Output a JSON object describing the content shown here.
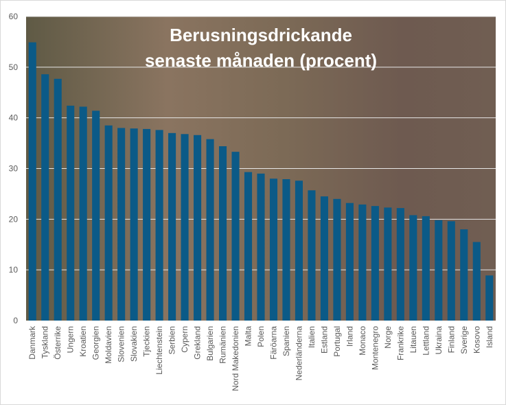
{
  "chart_data": {
    "type": "bar",
    "title": "Berusningsdrickande senaste månaden (procent)",
    "title_lines": [
      "Berusningsdrickande",
      "senaste månaden (procent)"
    ],
    "xlabel": "",
    "ylabel": "",
    "ylim": [
      0,
      60
    ],
    "yticks": [
      0,
      10,
      20,
      30,
      40,
      50,
      60
    ],
    "grid": true,
    "bar_color": "#0b5a87",
    "categories": [
      "Danmark",
      "Tyskland",
      "Österrike",
      "Ungern",
      "Kroatien",
      "Georgien",
      "Moldavien",
      "Slovenien",
      "Slovakien",
      "Tjeckien",
      "Liechtenstein",
      "Serbien",
      "Cypern",
      "Grekland",
      "Bulgarien",
      "Rumänien",
      "Nord Makedonien",
      "Malta",
      "Polen",
      "Färöarna",
      "Spanien",
      "Nederländerna",
      "Italien",
      "Estland",
      "Portugal",
      "Irland",
      "Monaco",
      "Montenegro",
      "Norge",
      "Frankrike",
      "Litauen",
      "Lettland",
      "Ukraina",
      "Finland",
      "Sverige",
      "Kosovo",
      "Island"
    ],
    "values": [
      54.9,
      48.6,
      47.7,
      42.4,
      42.2,
      41.4,
      38.5,
      38.0,
      37.9,
      37.8,
      37.6,
      37.0,
      36.8,
      36.6,
      35.8,
      34.4,
      33.3,
      29.3,
      29.0,
      28.0,
      27.9,
      27.6,
      25.7,
      24.5,
      24.0,
      23.2,
      22.9,
      22.6,
      22.3,
      22.2,
      20.8,
      20.6,
      19.8,
      19.6,
      18.0,
      15.5,
      8.9
    ]
  }
}
